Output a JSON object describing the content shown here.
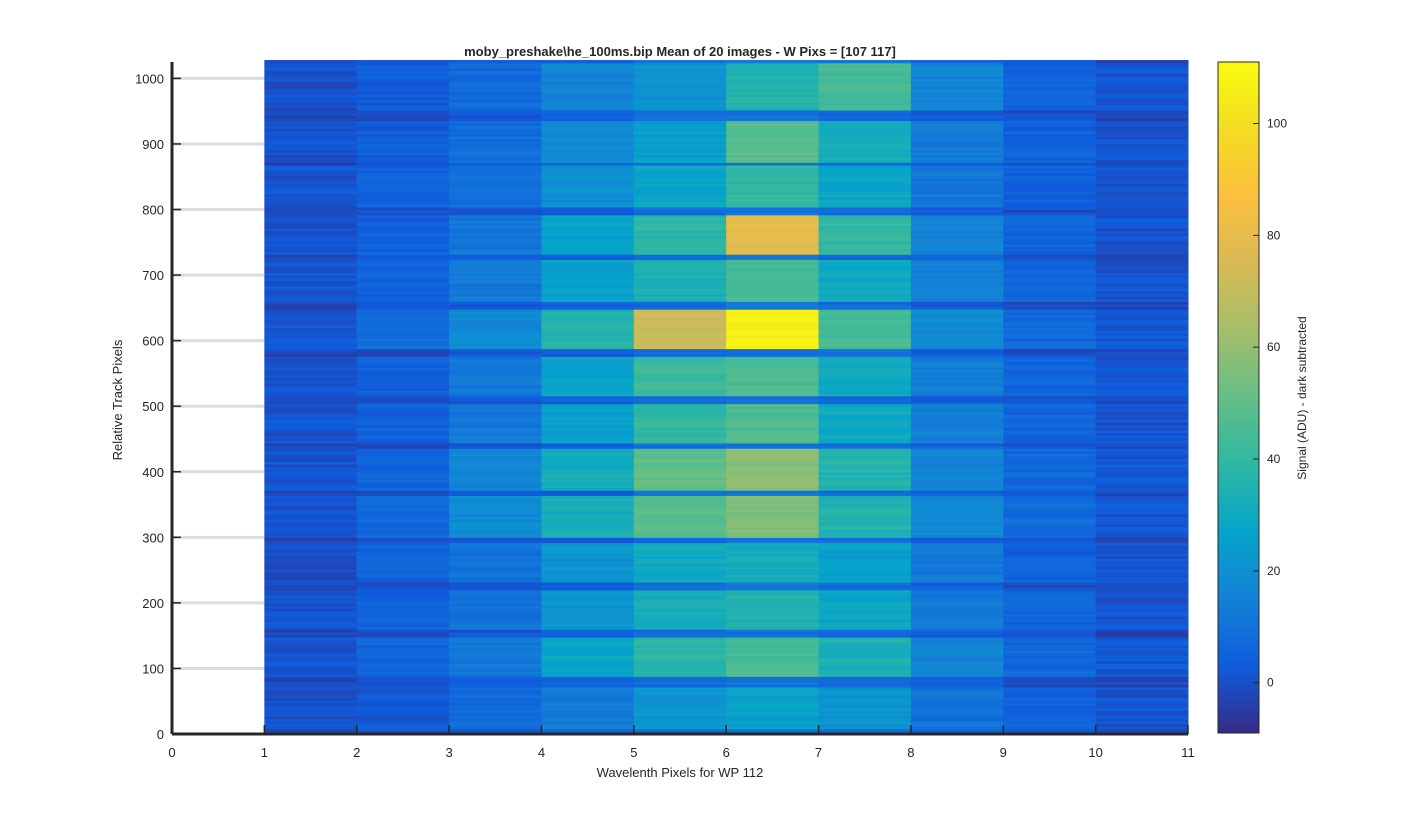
{
  "chart_data": {
    "type": "heatmap",
    "title": "moby_preshake\\he_100ms.bip  Mean of 20 images - W Pixs = [107  117]",
    "xlabel": "Wavelenth Pixels for WP 112",
    "ylabel": "Relative Track Pixels",
    "colorbar_label": "Signal (ADU) - dark subtracted",
    "xlim": [
      0,
      11
    ],
    "ylim": [
      0,
      1025
    ],
    "xticks": [
      "0",
      "1",
      "2",
      "3",
      "4",
      "5",
      "6",
      "7",
      "8",
      "9",
      "10",
      "11"
    ],
    "yticks": [
      "0",
      "100",
      "200",
      "300",
      "400",
      "500",
      "600",
      "700",
      "800",
      "900",
      "1000"
    ],
    "colorbar_ticks": [
      "0",
      "20",
      "40",
      "60",
      "80",
      "100"
    ],
    "clim": [
      -9,
      111
    ],
    "colormap": "parula",
    "grid": "y-only",
    "columns": [
      1,
      2,
      3,
      4,
      5,
      6,
      7,
      8,
      9,
      10
    ],
    "tracks": [
      {
        "y0": 8,
        "y1": 72,
        "values": [
          0,
          3,
          8,
          14,
          22,
          26,
          22,
          10,
          5,
          1
        ]
      },
      {
        "y0": 88,
        "y1": 148,
        "values": [
          1,
          6,
          12,
          28,
          38,
          44,
          34,
          16,
          7,
          2
        ]
      },
      {
        "y0": 160,
        "y1": 222,
        "values": [
          1,
          5,
          10,
          22,
          32,
          36,
          28,
          12,
          6,
          1
        ]
      },
      {
        "y0": 234,
        "y1": 294,
        "values": [
          0,
          5,
          10,
          22,
          30,
          32,
          26,
          12,
          5,
          1
        ]
      },
      {
        "y0": 302,
        "y1": 364,
        "values": [
          1,
          7,
          18,
          32,
          48,
          56,
          36,
          18,
          8,
          2
        ]
      },
      {
        "y0": 374,
        "y1": 436,
        "values": [
          1,
          6,
          16,
          32,
          50,
          58,
          36,
          16,
          7,
          2
        ]
      },
      {
        "y0": 444,
        "y1": 504,
        "values": [
          1,
          5,
          12,
          26,
          40,
          46,
          30,
          14,
          6,
          1
        ]
      },
      {
        "y0": 516,
        "y1": 576,
        "values": [
          1,
          5,
          12,
          26,
          42,
          46,
          30,
          14,
          6,
          1
        ]
      },
      {
        "y0": 588,
        "y1": 650,
        "values": [
          2,
          8,
          18,
          36,
          72,
          106,
          44,
          18,
          7,
          2
        ]
      },
      {
        "y0": 662,
        "y1": 724,
        "values": [
          1,
          5,
          12,
          26,
          34,
          44,
          30,
          14,
          6,
          1
        ]
      },
      {
        "y0": 734,
        "y1": 794,
        "values": [
          1,
          5,
          12,
          26,
          38,
          80,
          40,
          16,
          6,
          1
        ]
      },
      {
        "y0": 806,
        "y1": 868,
        "values": [
          1,
          5,
          10,
          20,
          28,
          40,
          28,
          12,
          5,
          1
        ]
      },
      {
        "y0": 874,
        "y1": 938,
        "values": [
          0,
          4,
          9,
          18,
          26,
          48,
          32,
          13,
          5,
          1
        ]
      },
      {
        "y0": 954,
        "y1": 1025,
        "values": [
          0,
          4,
          8,
          16,
          22,
          36,
          44,
          16,
          5,
          1
        ]
      }
    ],
    "background_values": [
      -2,
      0,
      2,
      4,
      8,
      10,
      8,
      4,
      0,
      -2
    ]
  }
}
